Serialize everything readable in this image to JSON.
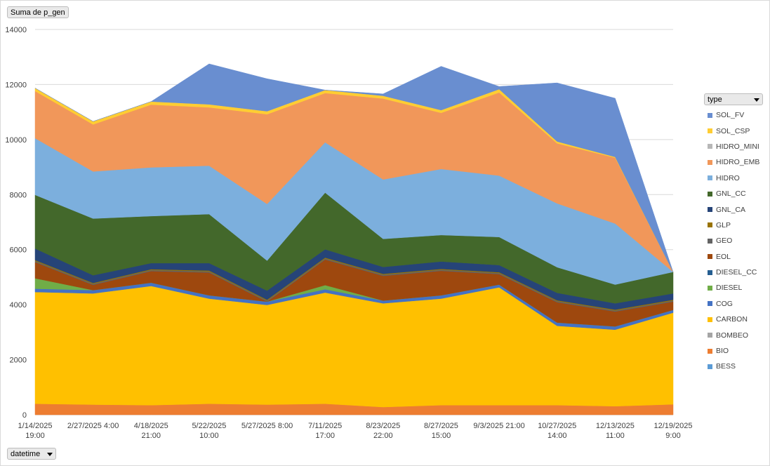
{
  "pivot": {
    "value_field": "Suma de p_gen",
    "axis_field": "datetime",
    "legend_field": "type"
  },
  "chart_data": {
    "type": "area",
    "stacked": true,
    "title": "",
    "ylim": [
      0,
      14000
    ],
    "yticks": [
      0,
      2000,
      4000,
      6000,
      8000,
      10000,
      12000,
      14000
    ],
    "grid": true,
    "legend_position": "right",
    "categories": [
      [
        "1/14/2025",
        "19:00"
      ],
      [
        "2/27/2025 4:00"
      ],
      [
        "4/18/2025",
        "21:00"
      ],
      [
        "5/22/2025",
        "10:00"
      ],
      [
        "5/27/2025 8:00"
      ],
      [
        "7/11/2025",
        "17:00"
      ],
      [
        "8/23/2025",
        "22:00"
      ],
      [
        "8/27/2025",
        "15:00"
      ],
      [
        "9/3/2025 21:00"
      ],
      [
        "10/27/2025",
        "14:00"
      ],
      [
        "12/13/2025",
        "11:00"
      ],
      [
        "12/19/2025",
        "9:00"
      ]
    ],
    "series": [
      {
        "name": "BESS",
        "color": "#5b9bd5",
        "values": [
          0,
          0,
          0,
          0,
          0,
          0,
          0,
          0,
          0,
          0,
          0,
          0
        ]
      },
      {
        "name": "BIO",
        "color": "#ed7d31",
        "values": [
          400,
          370,
          350,
          400,
          370,
          400,
          280,
          350,
          350,
          350,
          310,
          380
        ]
      },
      {
        "name": "BOMBEO",
        "color": "#a5a5a5",
        "values": [
          0,
          0,
          0,
          0,
          0,
          0,
          0,
          0,
          0,
          0,
          0,
          0
        ]
      },
      {
        "name": "CARBON",
        "color": "#ffc000",
        "values": [
          4060,
          4040,
          4330,
          3820,
          3620,
          4040,
          3770,
          3870,
          4280,
          2880,
          2780,
          3330
        ]
      },
      {
        "name": "COG",
        "color": "#4472c4",
        "values": [
          120,
          120,
          120,
          120,
          120,
          120,
          100,
          120,
          100,
          120,
          120,
          100
        ]
      },
      {
        "name": "DIESEL",
        "color": "#70ad47",
        "values": [
          380,
          0,
          0,
          0,
          0,
          150,
          0,
          0,
          0,
          0,
          0,
          0
        ]
      },
      {
        "name": "DIESEL_CC",
        "color": "#255e91",
        "values": [
          0,
          0,
          0,
          0,
          0,
          0,
          0,
          0,
          0,
          0,
          0,
          0
        ]
      },
      {
        "name": "EOL",
        "color": "#9e480e",
        "values": [
          590,
          190,
          420,
          830,
          0,
          930,
          900,
          890,
          380,
          740,
          540,
          300
        ]
      },
      {
        "name": "GEO",
        "color": "#636363",
        "values": [
          40,
          40,
          40,
          40,
          40,
          40,
          40,
          40,
          40,
          40,
          40,
          40
        ]
      },
      {
        "name": "GLP",
        "color": "#997300",
        "values": [
          30,
          30,
          30,
          30,
          30,
          30,
          30,
          30,
          30,
          30,
          30,
          30
        ]
      },
      {
        "name": "GNL_CA",
        "color": "#264478",
        "values": [
          420,
          280,
          220,
          270,
          330,
          300,
          250,
          270,
          260,
          270,
          230,
          230
        ]
      },
      {
        "name": "GNL_CC",
        "color": "#43682b",
        "values": [
          1950,
          2060,
          1710,
          1780,
          1090,
          2060,
          1020,
          960,
          1020,
          930,
          680,
          780
        ]
      },
      {
        "name": "HIDRO",
        "color": "#7cafdd",
        "values": [
          2060,
          1710,
          1770,
          1760,
          2060,
          1830,
          2160,
          2400,
          2230,
          2320,
          2220,
          0
        ]
      },
      {
        "name": "HIDRO_EMB",
        "color": "#f1975a",
        "values": [
          1710,
          1710,
          2280,
          2120,
          3260,
          1790,
          2940,
          2040,
          3020,
          2180,
          2390,
          0
        ]
      },
      {
        "name": "HIDRO_MINI",
        "color": "#b7b7b7",
        "values": [
          0,
          0,
          0,
          0,
          0,
          0,
          0,
          0,
          0,
          0,
          0,
          0
        ]
      },
      {
        "name": "SOL_CSP",
        "color": "#ffcd33",
        "values": [
          110,
          110,
          110,
          110,
          110,
          110,
          100,
          100,
          120,
          70,
          30,
          0
        ]
      },
      {
        "name": "SOL_FV",
        "color": "#698ed0",
        "values": [
          0,
          0,
          0,
          1470,
          1180,
          0,
          70,
          1590,
          100,
          2130,
          2130,
          0
        ]
      }
    ]
  }
}
